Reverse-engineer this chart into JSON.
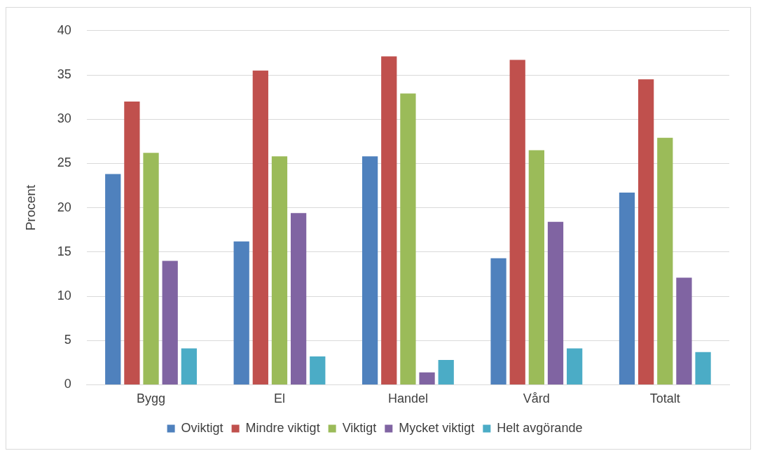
{
  "chart_data": {
    "type": "bar",
    "ylabel": "Procent",
    "categories": [
      "Bygg",
      "El",
      "Handel",
      "Vård",
      "Totalt"
    ],
    "series": [
      {
        "name": "Oviktigt",
        "color": "#4f81bd",
        "values": [
          23.8,
          16.2,
          25.8,
          14.3,
          21.7
        ]
      },
      {
        "name": "Mindre viktigt",
        "color": "#c0504d",
        "values": [
          32,
          35.5,
          37.1,
          36.7,
          34.5
        ]
      },
      {
        "name": "Viktigt",
        "color": "#9bbb59",
        "values": [
          26.2,
          25.8,
          32.9,
          26.5,
          27.9
        ]
      },
      {
        "name": "Mycket viktigt",
        "color": "#8064a2",
        "values": [
          14,
          19.4,
          1.4,
          18.4,
          12.1
        ]
      },
      {
        "name": "Helt avgörande",
        "color": "#4bacc6",
        "values": [
          4.1,
          3.2,
          2.8,
          4.1,
          3.7
        ]
      }
    ],
    "ylim": [
      0,
      40
    ],
    "yticks": [
      0,
      5,
      10,
      15,
      20,
      25,
      30,
      35,
      40
    ],
    "grid": "y",
    "legend": "bottom"
  }
}
